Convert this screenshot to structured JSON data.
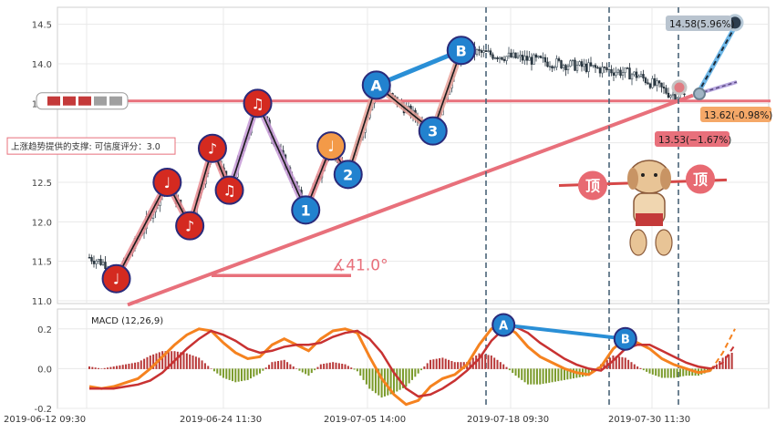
{
  "chart_data": [
    {
      "type": "candlestick",
      "ylim": [
        11.0,
        14.75
      ],
      "yticks": [
        "11.0",
        "11.5",
        "12.0",
        "12.5",
        "13.0",
        "13.5",
        "14.0",
        "14.5"
      ],
      "grid": true,
      "wave_points": [
        {
          "x": "2019-06-14 14:00",
          "y": 11.28,
          "label": "♩",
          "color": "#d42a20"
        },
        {
          "x": "2019-06-21 10:00",
          "y": 12.5,
          "label": "♩",
          "color": "#d42a20"
        },
        {
          "x": "2019-06-25 10:00",
          "y": 11.95,
          "label": "♪",
          "color": "#d42a20"
        },
        {
          "x": "2019-06-27 10:00",
          "y": 12.93,
          "label": "♪",
          "color": "#d42a20"
        },
        {
          "x": "2019-06-28 14:00",
          "y": 12.4,
          "label": "♫",
          "color": "#d42a20"
        },
        {
          "x": "2019-07-03 10:00",
          "y": 13.5,
          "label": "♫",
          "color": "#d42a20"
        },
        {
          "x": "2019-07-09 11:00",
          "y": 12.15,
          "label": "1",
          "color": "#2282cf"
        },
        {
          "x": "2019-07-11 14:00",
          "y": 12.96,
          "label": "♩",
          "color": "#f39a48"
        },
        {
          "x": "2019-07-15 10:00",
          "y": 12.6,
          "label": "2",
          "color": "#2282cf"
        },
        {
          "x": "2019-07-17 14:00",
          "y": 13.73,
          "label": "A",
          "color": "#2282cf"
        },
        {
          "x": "2019-07-24 14:00",
          "y": 13.15,
          "label": "3",
          "color": "#2282cf"
        },
        {
          "x": "2019-07-29 10:00",
          "y": 14.17,
          "label": "B",
          "color": "#2282cf"
        }
      ],
      "resistance_level": 13.53,
      "resistance_label": "上涨趋势提供的支撑: 可信度评分：3.0",
      "trendline_angle": "∡41.0°",
      "target_up_label": "14.58(5.96%)",
      "target_down_label": "13.62(-0.98%)",
      "target_support_label": "13.53(−1.67%)",
      "top_marker_label": "顶",
      "candles_description": "OHLC price bars from 2019-06-12 to 2019-08-01"
    },
    {
      "type": "line",
      "title": "MACD (12,26,9)",
      "ylim": [
        -0.2,
        0.3
      ],
      "yticks": [
        "-0.2",
        "0.0",
        "0.2"
      ],
      "x_ticks": [
        "2019-06-12 09:30",
        "2019-06-24 11:30",
        "2019-07-05 14:00",
        "2019-07-18 09:30",
        "2019-07-30 11:30"
      ],
      "series": [
        {
          "name": "DIF",
          "color": "#f5821f",
          "values": [
            -0.09,
            -0.1,
            -0.09,
            -0.07,
            -0.05,
            0.0,
            0.06,
            0.12,
            0.17,
            0.2,
            0.19,
            0.13,
            0.08,
            0.05,
            0.06,
            0.12,
            0.15,
            0.12,
            0.09,
            0.15,
            0.19,
            0.2,
            0.18,
            0.06,
            -0.05,
            -0.13,
            -0.18,
            -0.16,
            -0.09,
            -0.05,
            -0.03,
            0.02,
            0.12,
            0.2,
            0.22,
            0.18,
            0.11,
            0.06,
            0.03,
            0.0,
            -0.02,
            -0.03,
            0.01,
            0.1,
            0.15,
            0.13,
            0.1,
            0.05,
            0.02,
            0.0,
            -0.02,
            -0.01,
            0.08,
            0.2
          ]
        },
        {
          "name": "DEA",
          "color": "#c83232",
          "values": [
            -0.1,
            -0.1,
            -0.1,
            -0.09,
            -0.08,
            -0.06,
            -0.02,
            0.04,
            0.1,
            0.15,
            0.19,
            0.17,
            0.14,
            0.1,
            0.08,
            0.09,
            0.11,
            0.12,
            0.12,
            0.13,
            0.16,
            0.18,
            0.19,
            0.15,
            0.08,
            -0.02,
            -0.1,
            -0.14,
            -0.13,
            -0.1,
            -0.06,
            -0.01,
            0.05,
            0.14,
            0.2,
            0.21,
            0.18,
            0.13,
            0.09,
            0.05,
            0.02,
            0.0,
            -0.01,
            0.04,
            0.1,
            0.12,
            0.12,
            0.09,
            0.06,
            0.03,
            0.01,
            0.0,
            0.03,
            0.12
          ]
        }
      ],
      "peak_markers": [
        {
          "label": "A",
          "x_index": 34,
          "y": 0.22
        },
        {
          "label": "B",
          "x_index": 44,
          "y": 0.15
        }
      ]
    }
  ]
}
